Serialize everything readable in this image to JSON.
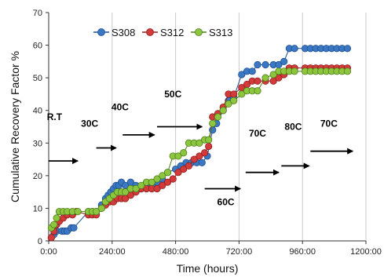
{
  "chart_data": {
    "type": "scatter",
    "title": "",
    "xlabel": "Time (hours)",
    "ylabel": "Cumulative Recovery Factor %",
    "xlim": [
      0,
      1200
    ],
    "ylim": [
      0,
      70
    ],
    "x_ticks": [
      0,
      240,
      480,
      720,
      960,
      1200
    ],
    "x_tick_labels": [
      "0:00",
      "240:00",
      "480:00",
      "720:00",
      "960:00",
      "1200:00"
    ],
    "y_ticks": [
      0,
      10,
      20,
      30,
      40,
      50,
      60,
      70
    ],
    "y_tick_labels": [
      "0",
      "10",
      "20",
      "30",
      "40",
      "50",
      "60",
      "70"
    ],
    "grid": "vertical",
    "legend_position": "top",
    "series": [
      {
        "name": "S308",
        "color": "#3b78c4",
        "edge": "#1f4f8f",
        "points": [
          [
            10,
            1
          ],
          [
            20,
            2
          ],
          [
            30,
            3
          ],
          [
            50,
            3
          ],
          [
            60,
            3
          ],
          [
            70,
            3
          ],
          [
            85,
            4
          ],
          [
            95,
            4
          ],
          [
            150,
            9
          ],
          [
            165,
            9
          ],
          [
            180,
            9
          ],
          [
            200,
            11
          ],
          [
            215,
            13
          ],
          [
            225,
            14
          ],
          [
            235,
            15
          ],
          [
            245,
            16
          ],
          [
            255,
            17
          ],
          [
            265,
            17
          ],
          [
            275,
            18
          ],
          [
            290,
            17
          ],
          [
            310,
            18
          ],
          [
            330,
            17
          ],
          [
            350,
            16
          ],
          [
            370,
            17
          ],
          [
            390,
            17
          ],
          [
            410,
            18
          ],
          [
            430,
            19
          ],
          [
            450,
            21
          ],
          [
            480,
            22
          ],
          [
            500,
            23
          ],
          [
            520,
            24
          ],
          [
            540,
            24
          ],
          [
            560,
            24
          ],
          [
            580,
            24
          ],
          [
            600,
            26
          ],
          [
            620,
            34
          ],
          [
            635,
            36
          ],
          [
            660,
            40
          ],
          [
            680,
            43
          ],
          [
            700,
            44
          ],
          [
            730,
            51
          ],
          [
            750,
            52
          ],
          [
            770,
            52
          ],
          [
            790,
            54
          ],
          [
            820,
            54
          ],
          [
            850,
            54
          ],
          [
            870,
            54
          ],
          [
            890,
            55
          ],
          [
            910,
            59
          ],
          [
            930,
            59
          ],
          [
            970,
            59
          ],
          [
            990,
            59
          ],
          [
            1010,
            59
          ],
          [
            1030,
            59
          ],
          [
            1050,
            59
          ],
          [
            1070,
            59
          ],
          [
            1090,
            59
          ],
          [
            1110,
            59
          ],
          [
            1130,
            59
          ]
        ]
      },
      {
        "name": "S312",
        "color": "#d33a3a",
        "edge": "#8f1e1e",
        "points": [
          [
            10,
            1
          ],
          [
            20,
            3
          ],
          [
            30,
            5
          ],
          [
            40,
            6
          ],
          [
            55,
            7
          ],
          [
            70,
            8
          ],
          [
            90,
            8
          ],
          [
            105,
            9
          ],
          [
            150,
            8
          ],
          [
            165,
            8
          ],
          [
            180,
            8
          ],
          [
            200,
            10
          ],
          [
            215,
            11
          ],
          [
            230,
            12
          ],
          [
            245,
            12
          ],
          [
            260,
            13
          ],
          [
            275,
            13
          ],
          [
            290,
            13
          ],
          [
            310,
            14
          ],
          [
            330,
            15
          ],
          [
            350,
            16
          ],
          [
            370,
            16
          ],
          [
            390,
            16
          ],
          [
            410,
            16
          ],
          [
            430,
            17
          ],
          [
            450,
            18
          ],
          [
            470,
            19
          ],
          [
            490,
            21
          ],
          [
            510,
            22
          ],
          [
            530,
            23
          ],
          [
            550,
            25
          ],
          [
            570,
            26
          ],
          [
            590,
            27
          ],
          [
            605,
            29
          ],
          [
            620,
            38
          ],
          [
            640,
            39
          ],
          [
            660,
            41
          ],
          [
            680,
            45
          ],
          [
            700,
            45
          ],
          [
            730,
            47
          ],
          [
            750,
            48
          ],
          [
            770,
            49
          ],
          [
            790,
            49
          ],
          [
            820,
            49
          ],
          [
            850,
            49
          ],
          [
            870,
            50
          ],
          [
            890,
            51
          ],
          [
            910,
            53
          ],
          [
            930,
            53
          ],
          [
            970,
            53
          ],
          [
            990,
            53
          ],
          [
            1010,
            53
          ],
          [
            1030,
            53
          ],
          [
            1050,
            53
          ],
          [
            1070,
            53
          ],
          [
            1090,
            53
          ],
          [
            1110,
            53
          ],
          [
            1130,
            53
          ]
        ]
      },
      {
        "name": "S313",
        "color": "#8cc63f",
        "edge": "#4f7d1a",
        "points": [
          [
            10,
            4
          ],
          [
            20,
            5
          ],
          [
            30,
            7
          ],
          [
            40,
            9
          ],
          [
            55,
            9
          ],
          [
            70,
            9
          ],
          [
            90,
            9
          ],
          [
            110,
            9
          ],
          [
            150,
            9
          ],
          [
            165,
            9
          ],
          [
            180,
            9
          ],
          [
            200,
            10
          ],
          [
            215,
            12
          ],
          [
            230,
            13
          ],
          [
            245,
            14
          ],
          [
            260,
            15
          ],
          [
            275,
            15
          ],
          [
            290,
            15
          ],
          [
            310,
            16
          ],
          [
            330,
            16
          ],
          [
            350,
            17
          ],
          [
            370,
            18
          ],
          [
            390,
            18
          ],
          [
            410,
            19
          ],
          [
            430,
            20
          ],
          [
            450,
            21
          ],
          [
            470,
            26
          ],
          [
            490,
            26
          ],
          [
            510,
            27
          ],
          [
            530,
            30
          ],
          [
            550,
            30
          ],
          [
            570,
            30
          ],
          [
            590,
            31
          ],
          [
            605,
            31
          ],
          [
            620,
            36
          ],
          [
            640,
            38
          ],
          [
            660,
            40
          ],
          [
            680,
            42
          ],
          [
            700,
            43
          ],
          [
            730,
            45
          ],
          [
            750,
            46
          ],
          [
            770,
            46
          ],
          [
            790,
            46
          ],
          [
            820,
            50
          ],
          [
            850,
            51
          ],
          [
            870,
            52
          ],
          [
            890,
            52
          ],
          [
            910,
            52
          ],
          [
            930,
            52
          ],
          [
            970,
            52
          ],
          [
            990,
            52
          ],
          [
            1010,
            52
          ],
          [
            1030,
            52
          ],
          [
            1050,
            52
          ],
          [
            1070,
            52
          ],
          [
            1090,
            52
          ],
          [
            1110,
            52
          ],
          [
            1130,
            52
          ]
        ]
      }
    ],
    "stage_labels": [
      {
        "text": "R.T",
        "x": 22,
        "y": 37
      },
      {
        "text": "30C",
        "x": 155,
        "y": 35
      },
      {
        "text": "40C",
        "x": 270,
        "y": 40
      },
      {
        "text": "50C",
        "x": 470,
        "y": 44
      },
      {
        "text": "60C",
        "x": 670,
        "y": 11
      },
      {
        "text": "70C",
        "x": 790,
        "y": 32
      },
      {
        "text": "80C",
        "x": 925,
        "y": 34
      },
      {
        "text": "70C",
        "x": 1060,
        "y": 35
      }
    ],
    "arrows": [
      {
        "x1": 0,
        "x2": 110,
        "y": 24.5
      },
      {
        "x1": 180,
        "x2": 255,
        "y": 28.5
      },
      {
        "x1": 280,
        "x2": 400,
        "y": 32.5
      },
      {
        "x1": 410,
        "x2": 580,
        "y": 35
      },
      {
        "x1": 590,
        "x2": 725,
        "y": 16
      },
      {
        "x1": 745,
        "x2": 870,
        "y": 21
      },
      {
        "x1": 880,
        "x2": 985,
        "y": 23
      },
      {
        "x1": 990,
        "x2": 1150,
        "y": 27.5
      }
    ]
  }
}
